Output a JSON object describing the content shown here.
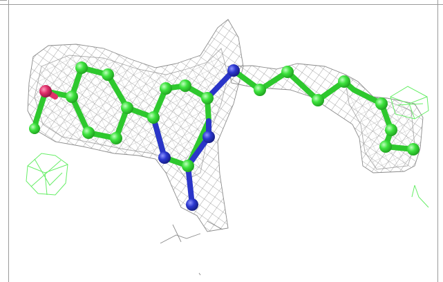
{
  "image": {
    "subject": "ligand-in-electron-density",
    "colors": {
      "carbon": "#33dd33",
      "nitrogen": "#2a35c8",
      "oxygen": "#e0306a",
      "density_mesh": "#8a8a8a",
      "difference_mesh": "#66ee66",
      "background": "#ffffff"
    }
  }
}
